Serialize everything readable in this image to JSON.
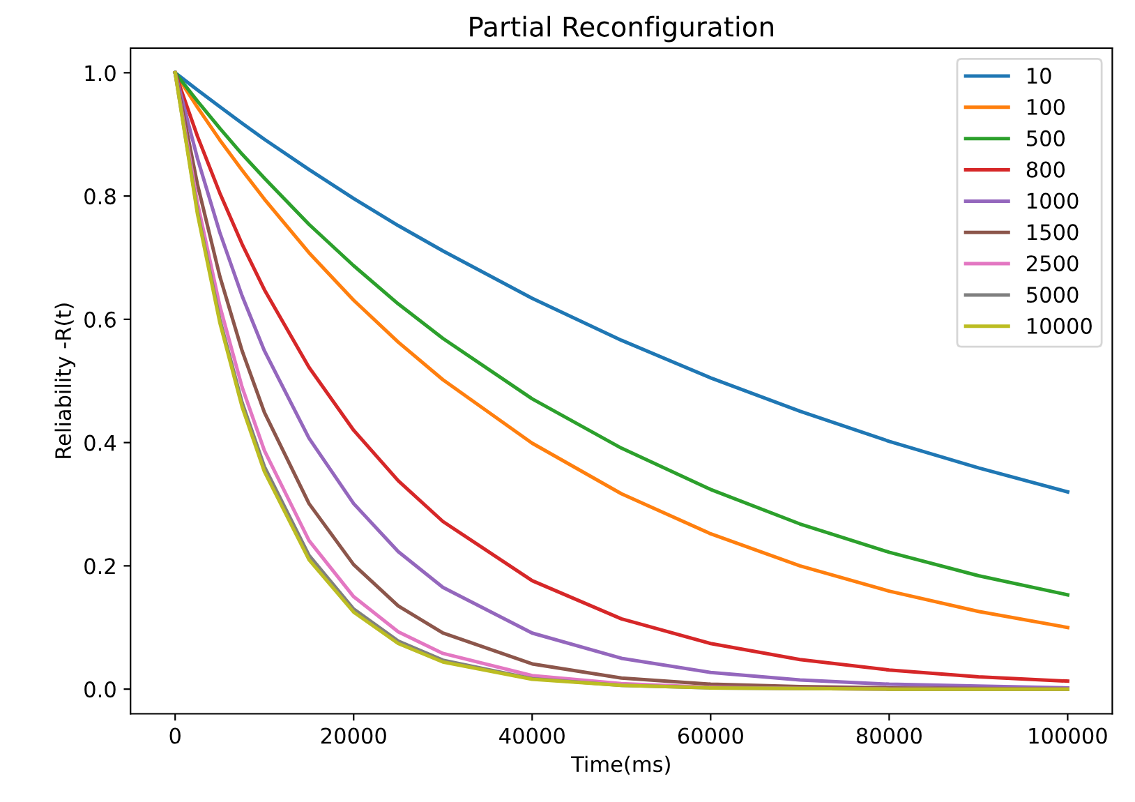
{
  "chart_data": {
    "type": "line",
    "title": "Partial Reconfiguration",
    "xlabel": "Time(ms)",
    "ylabel": "Reliability -R(t)",
    "x": [
      0,
      2500,
      5000,
      7500,
      10000,
      15000,
      20000,
      25000,
      30000,
      40000,
      50000,
      60000,
      70000,
      80000,
      90000,
      100000
    ],
    "series": [
      {
        "name": "10",
        "color": "#1f77b4",
        "values": [
          1,
          0.972,
          0.945,
          0.918,
          0.892,
          0.843,
          0.796,
          0.752,
          0.711,
          0.634,
          0.566,
          0.505,
          0.451,
          0.402,
          0.359,
          0.32
        ]
      },
      {
        "name": "100",
        "color": "#ff7f0e",
        "values": [
          1,
          0.944,
          0.891,
          0.842,
          0.795,
          0.708,
          0.631,
          0.563,
          0.502,
          0.399,
          0.317,
          0.252,
          0.2,
          0.159,
          0.126,
          0.1
        ]
      },
      {
        "name": "500",
        "color": "#2ca02c",
        "values": [
          1,
          0.954,
          0.91,
          0.868,
          0.829,
          0.754,
          0.687,
          0.625,
          0.569,
          0.471,
          0.391,
          0.324,
          0.268,
          0.222,
          0.184,
          0.153
        ]
      },
      {
        "name": "800",
        "color": "#d62728",
        "values": [
          1,
          0.897,
          0.805,
          0.722,
          0.648,
          0.522,
          0.42,
          0.338,
          0.272,
          0.176,
          0.114,
          0.074,
          0.048,
          0.031,
          0.02,
          0.013
        ]
      },
      {
        "name": "1000",
        "color": "#9467bd",
        "values": [
          1,
          0.861,
          0.741,
          0.638,
          0.549,
          0.407,
          0.301,
          0.223,
          0.165,
          0.091,
          0.05,
          0.027,
          0.015,
          0.008,
          0.005,
          0.002
        ]
      },
      {
        "name": "1500",
        "color": "#8c564b",
        "values": [
          1,
          0.819,
          0.67,
          0.549,
          0.449,
          0.301,
          0.202,
          0.135,
          0.091,
          0.041,
          0.018,
          0.008,
          0.004,
          0.002,
          0.001,
          0
        ]
      },
      {
        "name": "2500",
        "color": "#e377c2",
        "values": [
          1,
          0.789,
          0.622,
          0.49,
          0.387,
          0.241,
          0.15,
          0.093,
          0.058,
          0.022,
          0.009,
          0.003,
          0.001,
          0,
          0,
          0
        ]
      },
      {
        "name": "5000",
        "color": "#7f7f7f",
        "values": [
          1,
          0.775,
          0.6,
          0.465,
          0.361,
          0.217,
          0.13,
          0.078,
          0.047,
          0.017,
          0.006,
          0.002,
          0.001,
          0,
          0,
          0
        ]
      },
      {
        "name": "10000",
        "color": "#bcbd22",
        "values": [
          1,
          0.771,
          0.595,
          0.458,
          0.353,
          0.21,
          0.125,
          0.074,
          0.044,
          0.016,
          0.006,
          0.002,
          0.001,
          0,
          0,
          0
        ]
      }
    ],
    "xlim": [
      -5000,
      105000
    ],
    "xticks": [
      0,
      20000,
      40000,
      60000,
      80000,
      100000
    ],
    "ylim": [
      -0.04,
      1.04
    ],
    "yticks": [
      {
        "value": 0,
        "label": "0.0"
      },
      0.2,
      0.4,
      0.6,
      0.8,
      {
        "value": 1,
        "label": "1.0"
      }
    ],
    "grid": false,
    "legend": "top right"
  }
}
